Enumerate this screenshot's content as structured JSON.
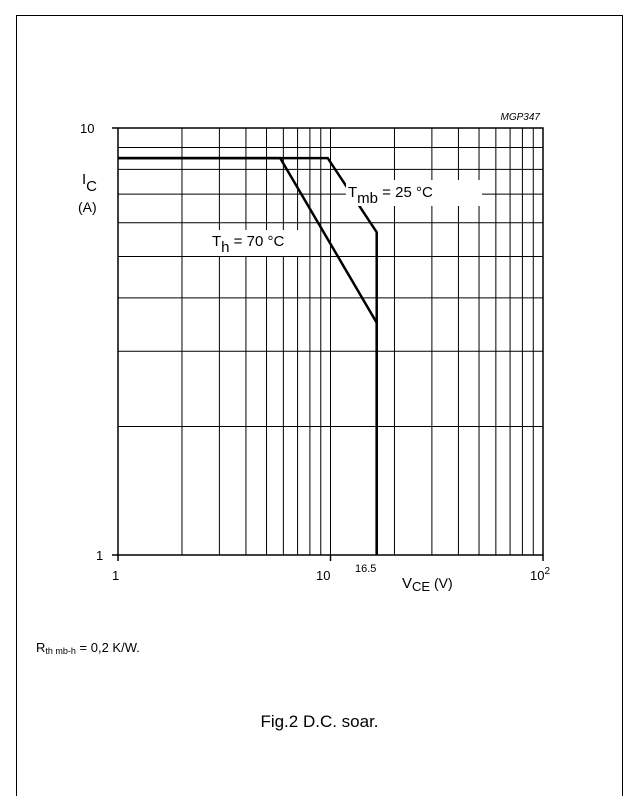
{
  "chart_data": {
    "type": "line",
    "id_label": "MGP347",
    "x_scale": "log",
    "y_scale": "log",
    "xlim": [
      1,
      100
    ],
    "ylim": [
      1,
      10
    ],
    "x_tick_labels": [
      "1",
      "10",
      "16.5",
      "10",
      "2"
    ],
    "y_tick_labels": [
      "10",
      "1"
    ],
    "ylabel_main": "I",
    "ylabel_sub": "C",
    "ylabel_unit": "(A)",
    "xlabel_main": "V",
    "xlabel_sub": "CE",
    "xlabel_unit": "(V)",
    "grid": true,
    "series": [
      {
        "label_main": "T",
        "label_sub": "mb",
        "label_rest": " = 25 °C",
        "points": [
          [
            1,
            8.5
          ],
          [
            9.7,
            8.5
          ],
          [
            16.5,
            5.7
          ],
          [
            16.5,
            1
          ]
        ]
      },
      {
        "label_main": "T",
        "label_sub": "h",
        "label_rest": " = 70 °C",
        "points": [
          [
            1,
            8.5
          ],
          [
            5.8,
            8.5
          ],
          [
            16.5,
            3.5
          ],
          [
            16.5,
            1
          ]
        ]
      }
    ]
  },
  "note": {
    "prefix": "R",
    "sub": "th mb-h",
    "rest": " = 0,2 K/W."
  },
  "caption": "Fig.2  D.C. soar."
}
